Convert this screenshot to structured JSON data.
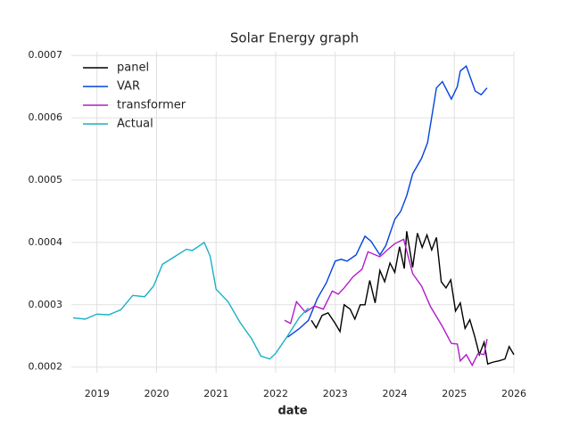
{
  "chart_data": {
    "type": "line",
    "title": "Solar Energy graph",
    "x_label": "date",
    "xlim": [
      2018.57,
      2026.0
    ],
    "xticks": [
      2019,
      2020,
      2021,
      2022,
      2023,
      2024,
      2025,
      2026
    ],
    "ylim": [
      0.000191,
      0.000706
    ],
    "yticks": [
      0.0002,
      0.0003,
      0.0004,
      0.0005,
      0.0006,
      0.0007
    ],
    "grid": true,
    "legend": "upper left",
    "series": [
      {
        "name": "panel",
        "color": "#000000",
        "x": [
          2022.6,
          2022.68,
          2022.78,
          2022.88,
          2023.0,
          2023.08,
          2023.15,
          2023.25,
          2023.33,
          2023.42,
          2023.5,
          2023.58,
          2023.67,
          2023.75,
          2023.83,
          2023.92,
          2024.0,
          2024.08,
          2024.16,
          2024.2,
          2024.3,
          2024.38,
          2024.46,
          2024.54,
          2024.62,
          2024.7,
          2024.78,
          2024.86,
          2024.94,
          2025.02,
          2025.1,
          2025.18,
          2025.26,
          2025.34,
          2025.42,
          2025.5,
          2025.56,
          2025.65,
          2025.75,
          2025.85,
          2025.92,
          2026.0
        ],
        "values": [
          0.000275,
          0.000263,
          0.000283,
          0.000287,
          0.00027,
          0.000257,
          0.0003,
          0.000293,
          0.000277,
          0.0003,
          0.0003,
          0.000339,
          0.000303,
          0.000355,
          0.000337,
          0.000367,
          0.000352,
          0.000393,
          0.000358,
          0.000418,
          0.00036,
          0.000415,
          0.000392,
          0.000412,
          0.000388,
          0.000408,
          0.000337,
          0.000327,
          0.00034,
          0.00029,
          0.000303,
          0.000262,
          0.000276,
          0.00025,
          0.00022,
          0.00024,
          0.000205,
          0.000208,
          0.00021,
          0.000213,
          0.000233,
          0.00022
        ]
      },
      {
        "name": "VAR",
        "color": "#0343df",
        "x": [
          2022.2,
          2022.4,
          2022.55,
          2022.7,
          2022.85,
          2023.0,
          2023.1,
          2023.2,
          2023.35,
          2023.5,
          2023.6,
          2023.75,
          2023.85,
          2024.0,
          2024.1,
          2024.2,
          2024.3,
          2024.45,
          2024.55,
          2024.7,
          2024.8,
          2024.95,
          2025.05,
          2025.1,
          2025.2,
          2025.35,
          2025.45,
          2025.55
        ],
        "values": [
          0.000248,
          0.000262,
          0.000275,
          0.00031,
          0.000335,
          0.00037,
          0.000373,
          0.00037,
          0.00038,
          0.00041,
          0.000402,
          0.00038,
          0.000395,
          0.000437,
          0.00045,
          0.000475,
          0.00051,
          0.000535,
          0.00056,
          0.000648,
          0.000658,
          0.00063,
          0.00065,
          0.000675,
          0.000683,
          0.000643,
          0.000637,
          0.000648
        ]
      },
      {
        "name": "transformer",
        "color": "#b01cc9",
        "x": [
          2022.15,
          2022.25,
          2022.35,
          2022.5,
          2022.65,
          2022.8,
          2022.95,
          2023.05,
          2023.15,
          2023.3,
          2023.45,
          2023.55,
          2023.75,
          2023.9,
          2024.0,
          2024.15,
          2024.3,
          2024.45,
          2024.6,
          2024.8,
          2024.95,
          2025.05,
          2025.1,
          2025.2,
          2025.3,
          2025.4,
          2025.5,
          2025.55
        ],
        "values": [
          0.000275,
          0.00027,
          0.000305,
          0.000288,
          0.000298,
          0.000293,
          0.000322,
          0.000317,
          0.000327,
          0.000345,
          0.000357,
          0.000385,
          0.000377,
          0.00039,
          0.000398,
          0.000405,
          0.00035,
          0.00033,
          0.000297,
          0.000265,
          0.000238,
          0.000237,
          0.00021,
          0.00022,
          0.000203,
          0.000222,
          0.00022,
          0.000245
        ]
      },
      {
        "name": "Actual",
        "color": "#17b1c4",
        "x": [
          2018.6,
          2018.8,
          2019.0,
          2019.2,
          2019.4,
          2019.6,
          2019.8,
          2019.95,
          2020.1,
          2020.3,
          2020.5,
          2020.6,
          2020.8,
          2020.9,
          2021.0,
          2021.2,
          2021.4,
          2021.6,
          2021.75,
          2021.9,
          2022.0,
          2022.2,
          2022.4,
          2022.55
        ],
        "values": [
          0.000279,
          0.000277,
          0.000285,
          0.000284,
          0.000292,
          0.000315,
          0.000313,
          0.00033,
          0.000365,
          0.000377,
          0.000389,
          0.000387,
          0.0004,
          0.000378,
          0.000325,
          0.000305,
          0.000272,
          0.000245,
          0.000218,
          0.000213,
          0.000222,
          0.00025,
          0.00028,
          0.000295
        ]
      }
    ]
  }
}
